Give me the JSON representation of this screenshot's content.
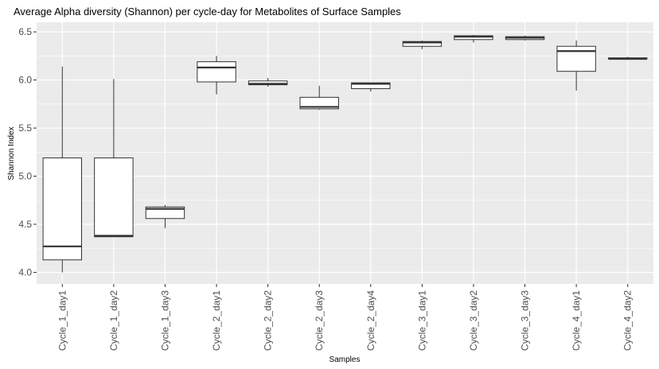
{
  "chart_data": {
    "type": "box",
    "title": "Average Alpha diversity (Shannon) per cycle-day for Metabolites of Surface Samples",
    "xlabel": "Samples",
    "ylabel": "Shannon Index",
    "ylim": [
      3.88,
      6.6
    ],
    "yticks": [
      "4.0",
      "4.5",
      "5.0",
      "5.5",
      "6.0",
      "6.5"
    ],
    "grid": true,
    "categories": [
      "Cycle_1_day1",
      "Cycle_1_day2",
      "Cycle_1_day3",
      "Cycle_2_day1",
      "Cycle_2_day2",
      "Cycle_2_day3",
      "Cycle_2_day4",
      "Cycle_3_day1",
      "Cycle_3_day2",
      "Cycle_3_day3",
      "Cycle_4_day1",
      "Cycle_4_day2"
    ],
    "boxes": [
      {
        "min": 4.0,
        "q1": 4.13,
        "median": 4.27,
        "q3": 5.19,
        "max": 6.14
      },
      {
        "min": 4.37,
        "q1": 4.37,
        "median": 4.38,
        "q3": 5.19,
        "max": 6.01
      },
      {
        "min": 4.46,
        "q1": 4.56,
        "median": 4.66,
        "q3": 4.68,
        "max": 4.7
      },
      {
        "min": 5.85,
        "q1": 5.98,
        "median": 6.13,
        "q3": 6.19,
        "max": 6.25
      },
      {
        "min": 5.93,
        "q1": 5.95,
        "median": 5.96,
        "q3": 5.99,
        "max": 6.02
      },
      {
        "min": 5.69,
        "q1": 5.7,
        "median": 5.72,
        "q3": 5.82,
        "max": 5.94
      },
      {
        "min": 5.88,
        "q1": 5.91,
        "median": 5.96,
        "q3": 5.97,
        "max": 5.97
      },
      {
        "min": 6.32,
        "q1": 6.35,
        "median": 6.39,
        "q3": 6.4,
        "max": 6.41
      },
      {
        "min": 6.39,
        "q1": 6.42,
        "median": 6.45,
        "q3": 6.46,
        "max": 6.47
      },
      {
        "min": 6.41,
        "q1": 6.42,
        "median": 6.44,
        "q3": 6.45,
        "max": 6.46
      },
      {
        "min": 5.89,
        "q1": 6.09,
        "median": 6.3,
        "q3": 6.35,
        "max": 6.41
      },
      {
        "min": 6.21,
        "q1": 6.22,
        "median": 6.22,
        "q3": 6.23,
        "max": 6.24
      }
    ]
  }
}
